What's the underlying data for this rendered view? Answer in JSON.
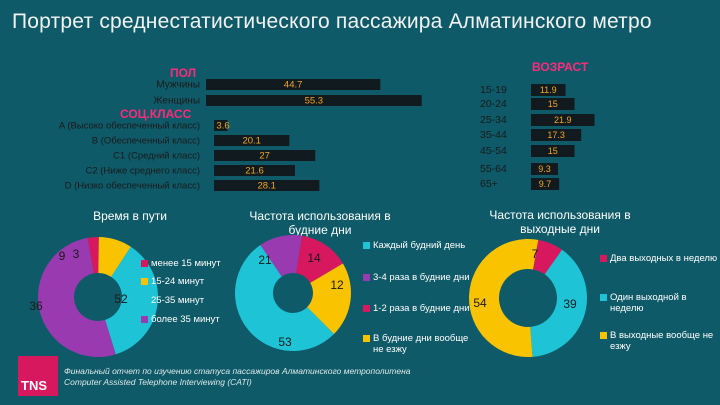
{
  "title": "Портрет среднестатистического пассажира Алматинского метро",
  "footer": {
    "line1": "Финальный отчет по изучению статуса пассажиров Алматинского метрополитена",
    "line2": "Computer Assisted Telephone Interviewing (CATI)",
    "logo_text": "TNS"
  },
  "colors": {
    "background": "#0e5a68",
    "bar": "#101a1f",
    "header_pink": "#ff2a7a",
    "bar_text": "#f5a623",
    "pie_magenta": "#d8185e",
    "pie_yellow": "#f9c300",
    "pie_cyan": "#1ec3d6",
    "pie_purple": "#9a3ab0"
  },
  "chart_data": [
    {
      "type": "bar",
      "title": "ПОЛ",
      "categories": [
        "Мужчины",
        "Женщины"
      ],
      "values": [
        44.7,
        55.3
      ],
      "value_labels": [
        "44.7",
        "55.3"
      ]
    },
    {
      "type": "bar",
      "title": "СОЦ.КЛАСС",
      "categories": [
        "A (Высоко обеспеченный класс)",
        "B (Обеспеченный класс)",
        "C1 (Средний класс)",
        "C2 (Ниже среднего класс)",
        "D (Низко обеспеченный класс)"
      ],
      "values": [
        3.6,
        20.1,
        27,
        21.6,
        28.1
      ],
      "value_labels": [
        "3.6",
        "20.1",
        "27",
        "21.6",
        "28.1"
      ]
    },
    {
      "type": "bar",
      "title": "ВОЗРАСТ",
      "categories": [
        "15-19",
        "20-24",
        "25-34",
        "35-44",
        "45-54",
        "55-64",
        "65+"
      ],
      "values": [
        11.9,
        15,
        21.9,
        17.3,
        15,
        9.3,
        9.7
      ],
      "value_labels": [
        "11.9",
        "15",
        "21.9",
        "17.3",
        "15",
        "9.3",
        "9.7"
      ]
    },
    {
      "type": "pie",
      "title": "Время в пути",
      "categories": [
        "менее 15 минут",
        "15-24 минут",
        "25-35 минут",
        "более 35 минут"
      ],
      "values": [
        3,
        9,
        36,
        52
      ],
      "colors": [
        "#d8185e",
        "#f9c300",
        "#1ec3d6",
        "#9a3ab0"
      ]
    },
    {
      "type": "pie",
      "title": "Частота использования в будние дни",
      "categories": [
        "Каждый будний день",
        "3-4 раза в будние дни",
        "1-2 раза в будние дни",
        "В будние дни вообще не езжу"
      ],
      "values": [
        53,
        12,
        14,
        21
      ],
      "colors": [
        "#1ec3d6",
        "#9a3ab0",
        "#d8185e",
        "#f9c300"
      ]
    },
    {
      "type": "pie",
      "title": "Частота использования в выходные дни",
      "categories": [
        "Два выходных в неделю",
        "Один выходной в неделю",
        "В выходные вообще не езжу"
      ],
      "values": [
        7,
        39,
        54
      ],
      "colors": [
        "#d8185e",
        "#1ec3d6",
        "#f9c300"
      ]
    }
  ]
}
